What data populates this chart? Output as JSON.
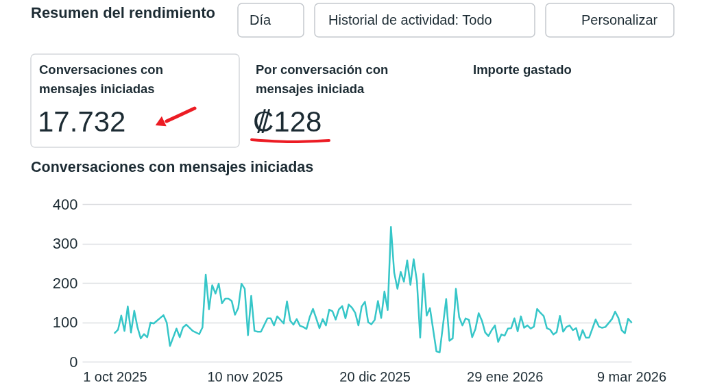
{
  "chart_data": [
    {
      "type": "other",
      "title": "Resumen del rendimiento",
      "annotations": [
        "Día",
        "Historial de actividad: Todo",
        "Personalizar",
        "Conversaciones con mensajes iniciadas",
        "17.732",
        "Por conversación con mensajes iniciada",
        "₡128",
        "Importe gastado"
      ]
    },
    {
      "type": "line",
      "title": "Conversaciones con mensajes iniciadas",
      "x": [
        "2025-10-01",
        "2025-10-02",
        "2025-10-03",
        "2025-10-04",
        "2025-10-05",
        "2025-10-06",
        "2025-10-07",
        "2025-10-08",
        "2025-10-09",
        "2025-10-10",
        "2025-10-11",
        "2025-10-12",
        "2025-10-13",
        "2025-10-16",
        "2025-10-17",
        "2025-10-18",
        "2025-10-19",
        "2025-10-20",
        "2025-10-21",
        "2025-10-22",
        "2025-10-23",
        "2025-10-25",
        "2025-10-27",
        "2025-10-28",
        "2025-10-29",
        "2025-10-30",
        "2025-10-31",
        "2025-11-01",
        "2025-11-02",
        "2025-11-03",
        "2025-11-04",
        "2025-11-05",
        "2025-11-06",
        "2025-11-07",
        "2025-11-08",
        "2025-11-09",
        "2025-11-10",
        "2025-11-11",
        "2025-11-12",
        "2025-11-13",
        "2025-11-14",
        "2025-11-15",
        "2025-11-17",
        "2025-11-18",
        "2025-11-19",
        "2025-11-20",
        "2025-11-22",
        "2025-11-23",
        "2025-11-24",
        "2025-11-25",
        "2025-11-26",
        "2025-11-27",
        "2025-11-28",
        "2025-11-29",
        "2025-11-30",
        "2025-12-01",
        "2025-12-02",
        "2025-12-03",
        "2025-12-04",
        "2025-12-05",
        "2025-12-06",
        "2025-12-07",
        "2025-12-08",
        "2025-12-09",
        "2025-12-10",
        "2025-12-11",
        "2025-12-12",
        "2025-12-13",
        "2025-12-14",
        "2025-12-15",
        "2025-12-16",
        "2025-12-17",
        "2025-12-18",
        "2025-12-19",
        "2025-12-20",
        "2025-12-21",
        "2025-12-22",
        "2025-12-23",
        "2025-12-24",
        "2025-12-25",
        "2025-12-26",
        "2025-12-27",
        "2025-12-28",
        "2025-12-29",
        "2025-12-30",
        "2025-12-31",
        "2026-01-01",
        "2026-01-02",
        "2026-01-03",
        "2026-01-04",
        "2026-01-05",
        "2026-01-06",
        "2026-01-08",
        "2026-01-09",
        "2026-01-11",
        "2026-01-12",
        "2026-01-13",
        "2026-01-14",
        "2026-01-15",
        "2026-01-16",
        "2026-01-17",
        "2026-01-18",
        "2026-01-19",
        "2026-01-20",
        "2026-01-21",
        "2026-01-22",
        "2026-01-23",
        "2026-01-24",
        "2026-01-25",
        "2026-01-26",
        "2026-01-27",
        "2026-01-28",
        "2026-01-29",
        "2026-01-30",
        "2026-01-31",
        "2026-02-01",
        "2026-02-02",
        "2026-02-03",
        "2026-02-04",
        "2026-02-05",
        "2026-02-06",
        "2026-02-07",
        "2026-02-08",
        "2026-02-09",
        "2026-02-10",
        "2026-02-11",
        "2026-02-12",
        "2026-02-13",
        "2026-02-14",
        "2026-02-15",
        "2026-02-16",
        "2026-02-17",
        "2026-02-18",
        "2026-02-19",
        "2026-02-20",
        "2026-02-21",
        "2026-02-22",
        "2026-02-23",
        "2026-02-24",
        "2026-02-26",
        "2026-02-27",
        "2026-02-28",
        "2026-03-01",
        "2026-03-03",
        "2026-03-04",
        "2026-03-05",
        "2026-03-06",
        "2026-03-07",
        "2026-03-08",
        "2026-03-09"
      ],
      "series": [
        {
          "color": "#36c6c8",
          "values": [
            73,
            81,
            117,
            78,
            140,
            74,
            129,
            87,
            59,
            70,
            62,
            99,
            97,
            118,
            99,
            40,
            62,
            84,
            62,
            87,
            94,
            78,
            70,
            87,
            221,
            133,
            194,
            173,
            198,
            148,
            160,
            160,
            154,
            119,
            136,
            198,
            185,
            67,
            167,
            78,
            76,
            76,
            110,
            110,
            92,
            115,
            97,
            153,
            104,
            94,
            108,
            91,
            88,
            83,
            113,
            134,
            110,
            85,
            108,
            92,
            132,
            128,
            107,
            133,
            141,
            110,
            145,
            137,
            124,
            92,
            140,
            152,
            100,
            95,
            106,
            154,
            111,
            178,
            131,
            342,
            226,
            185,
            228,
            203,
            257,
            195,
            260,
            204,
            61,
            223,
            117,
            136,
            26,
            24,
            159,
            53,
            59,
            185,
            113,
            92,
            110,
            106,
            62,
            83,
            123,
            104,
            74,
            65,
            80,
            92,
            50,
            69,
            66,
            84,
            85,
            110,
            77,
            115,
            86,
            92,
            84,
            89,
            134,
            124,
            116,
            85,
            81,
            69,
            75,
            116,
            76,
            88,
            92,
            80,
            85,
            55,
            80,
            61,
            61,
            107,
            89,
            86,
            88,
            108,
            127,
            111,
            80,
            72,
            109,
            100
          ]
        }
      ],
      "xlim": [
        "2025-09-21",
        "2026-03-09"
      ],
      "xticks": [
        {
          "value": "2025-10-01",
          "label": "1 oct 2025"
        },
        {
          "value": "2025-11-10",
          "label": "10 nov 2025"
        },
        {
          "value": "2025-12-20",
          "label": "20 dic 2025"
        },
        {
          "value": "2026-01-29",
          "label": "29 ene 2026"
        },
        {
          "value": "2026-03-09",
          "label": "9 mar 2026"
        }
      ],
      "ylim": [
        0,
        400
      ],
      "yticks": [
        0,
        100,
        200,
        300,
        400
      ],
      "grid": "y",
      "marker": "none",
      "line_style": "solid"
    }
  ]
}
